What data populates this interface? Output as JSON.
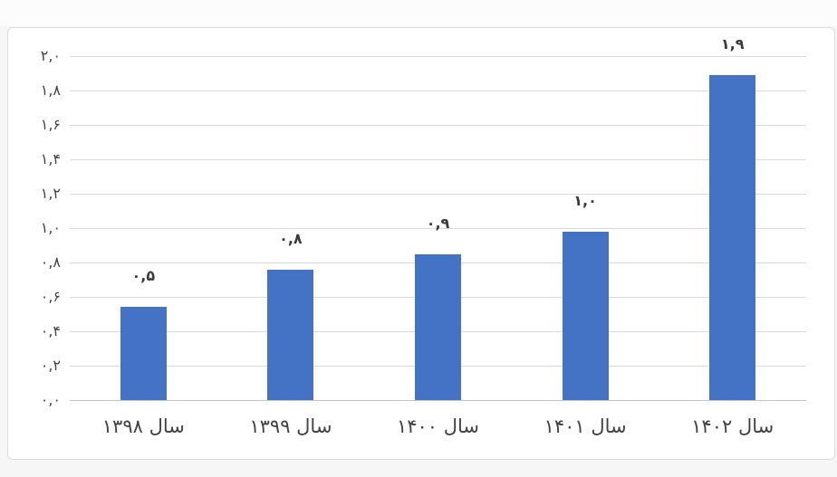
{
  "colors": {
    "bar": "#4472c4",
    "gridline": "#dadada",
    "axis_line": "#c4c4c4",
    "text": "#424242",
    "panel_background": "#ffffff",
    "panel_border": "#dcdcdc",
    "page_background": "#f6f6f6"
  },
  "chart_data": {
    "type": "bar",
    "title": "",
    "xlabel": "",
    "ylabel": "",
    "categories": [
      "سال ۱۳۹۸",
      "سال ۱۳۹۹",
      "سال ۱۴۰۰",
      "سال ۱۴۰۱",
      "سال ۱۴۰۲"
    ],
    "values": [
      0.5,
      0.8,
      0.9,
      1.0,
      1.9
    ],
    "values_precise": [
      0.54,
      0.76,
      0.85,
      0.98,
      1.89
    ],
    "value_labels": [
      "۰,۵",
      "۰,۸",
      "۰,۹",
      "۱,۰",
      "۱,۹"
    ],
    "ylim": [
      0,
      2
    ],
    "grid": true,
    "legend": false,
    "y_ticks": [
      {
        "value": 0.0,
        "label": "۰,۰"
      },
      {
        "value": 0.2,
        "label": "۰,۲"
      },
      {
        "value": 0.4,
        "label": "۰,۴"
      },
      {
        "value": 0.6,
        "label": "۰,۶"
      },
      {
        "value": 0.8,
        "label": "۰,۸"
      },
      {
        "value": 1.0,
        "label": "۱,۰"
      },
      {
        "value": 1.2,
        "label": "۱,۲"
      },
      {
        "value": 1.4,
        "label": "۱,۴"
      },
      {
        "value": 1.6,
        "label": "۱,۶"
      },
      {
        "value": 1.8,
        "label": "۱,۸"
      },
      {
        "value": 2.0,
        "label": "۲,۰"
      }
    ]
  }
}
